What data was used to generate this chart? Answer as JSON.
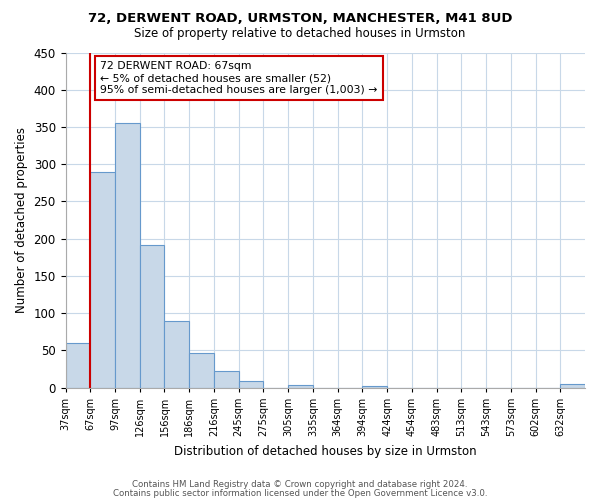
{
  "title1": "72, DERWENT ROAD, URMSTON, MANCHESTER, M41 8UD",
  "title2": "Size of property relative to detached houses in Urmston",
  "xlabel": "Distribution of detached houses by size in Urmston",
  "ylabel": "Number of detached properties",
  "bin_labels": [
    "37sqm",
    "67sqm",
    "97sqm",
    "126sqm",
    "156sqm",
    "186sqm",
    "216sqm",
    "245sqm",
    "275sqm",
    "305sqm",
    "335sqm",
    "364sqm",
    "394sqm",
    "424sqm",
    "454sqm",
    "483sqm",
    "513sqm",
    "543sqm",
    "573sqm",
    "602sqm",
    "632sqm"
  ],
  "bar_heights": [
    60,
    290,
    355,
    192,
    90,
    46,
    22,
    9,
    0,
    4,
    0,
    0,
    2,
    0,
    0,
    0,
    0,
    0,
    0,
    0,
    5
  ],
  "bar_color": "#c8d8e8",
  "bar_edge_color": "#6699cc",
  "subject_line_color": "#cc0000",
  "annotation_title": "72 DERWENT ROAD: 67sqm",
  "annotation_line1": "← 5% of detached houses are smaller (52)",
  "annotation_line2": "95% of semi-detached houses are larger (1,003) →",
  "annotation_box_color": "#cc0000",
  "ylim": [
    0,
    450
  ],
  "yticks": [
    0,
    50,
    100,
    150,
    200,
    250,
    300,
    350,
    400,
    450
  ],
  "footer1": "Contains HM Land Registry data © Crown copyright and database right 2024.",
  "footer2": "Contains public sector information licensed under the Open Government Licence v3.0.",
  "background_color": "#ffffff",
  "grid_color": "#c8d8e8"
}
